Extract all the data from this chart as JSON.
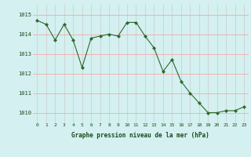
{
  "x": [
    0,
    1,
    2,
    3,
    4,
    5,
    6,
    7,
    8,
    9,
    10,
    11,
    12,
    13,
    14,
    15,
    16,
    17,
    18,
    19,
    20,
    21,
    22,
    23
  ],
  "y": [
    1014.7,
    1014.5,
    1013.7,
    1014.5,
    1013.7,
    1012.3,
    1013.8,
    1013.9,
    1014.0,
    1013.9,
    1014.6,
    1014.6,
    1013.9,
    1013.3,
    1012.1,
    1012.7,
    1011.6,
    1011.0,
    1010.5,
    1010.0,
    1010.0,
    1010.1,
    1010.1,
    1010.3
  ],
  "line_color": "#2d6a2d",
  "marker_color": "#2d6a2d",
  "bg_color": "#d4f0f0",
  "grid_color_v": "#cccccc",
  "grid_color_h": "#ff9999",
  "xlabel": "Graphe pression niveau de la mer (hPa)",
  "xlabel_color": "#1a4a1a",
  "ylim_min": 1009.5,
  "ylim_max": 1015.5,
  "xlim_min": -0.5,
  "xlim_max": 23.5,
  "yticks": [
    1010,
    1011,
    1012,
    1013,
    1014,
    1015
  ],
  "xticks": [
    0,
    1,
    2,
    3,
    4,
    5,
    6,
    7,
    8,
    9,
    10,
    11,
    12,
    13,
    14,
    15,
    16,
    17,
    18,
    19,
    20,
    21,
    22,
    23
  ]
}
